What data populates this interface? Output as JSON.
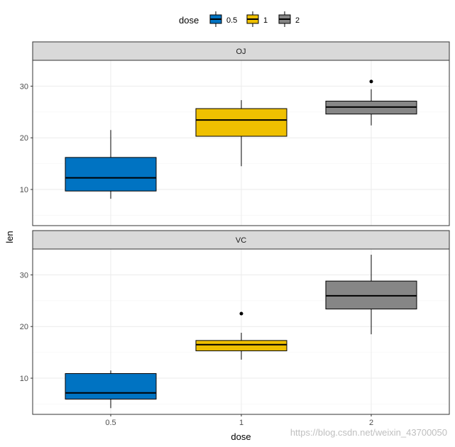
{
  "chart_data": {
    "type": "boxplot",
    "xlabel": "dose",
    "ylabel": "len",
    "categories": [
      "0.5",
      "1",
      "2"
    ],
    "ylim": [
      3,
      35
    ],
    "y_ticks": [
      10,
      20,
      30
    ],
    "grid": true,
    "legend": {
      "title": "dose",
      "position": "top",
      "entries": [
        {
          "label": "0.5",
          "color": "#0073C2"
        },
        {
          "label": "1",
          "color": "#EFC000"
        },
        {
          "label": "2",
          "color": "#868686"
        }
      ]
    },
    "facets": [
      {
        "label": "OJ",
        "boxes": [
          {
            "category": "0.5",
            "min": 8.2,
            "q1": 9.7,
            "median": 12.25,
            "q3": 16.2,
            "max": 21.5,
            "outliers": []
          },
          {
            "category": "1",
            "min": 14.5,
            "q1": 20.3,
            "median": 23.45,
            "q3": 25.65,
            "max": 27.3,
            "outliers": []
          },
          {
            "category": "2",
            "min": 22.4,
            "q1": 24.6,
            "median": 25.95,
            "q3": 27.1,
            "max": 29.4,
            "outliers": [
              30.9
            ]
          }
        ]
      },
      {
        "label": "VC",
        "boxes": [
          {
            "category": "0.5",
            "min": 4.2,
            "q1": 5.95,
            "median": 7.15,
            "q3": 10.9,
            "max": 11.5,
            "outliers": []
          },
          {
            "category": "1",
            "min": 13.6,
            "q1": 15.3,
            "median": 16.5,
            "q3": 17.3,
            "max": 18.8,
            "outliers": [
              22.5
            ]
          },
          {
            "category": "2",
            "min": 18.5,
            "q1": 23.4,
            "median": 25.95,
            "q3": 28.8,
            "max": 33.9,
            "outliers": []
          }
        ]
      }
    ]
  },
  "watermark": "https://blog.csdn.net/weixin_43700050"
}
